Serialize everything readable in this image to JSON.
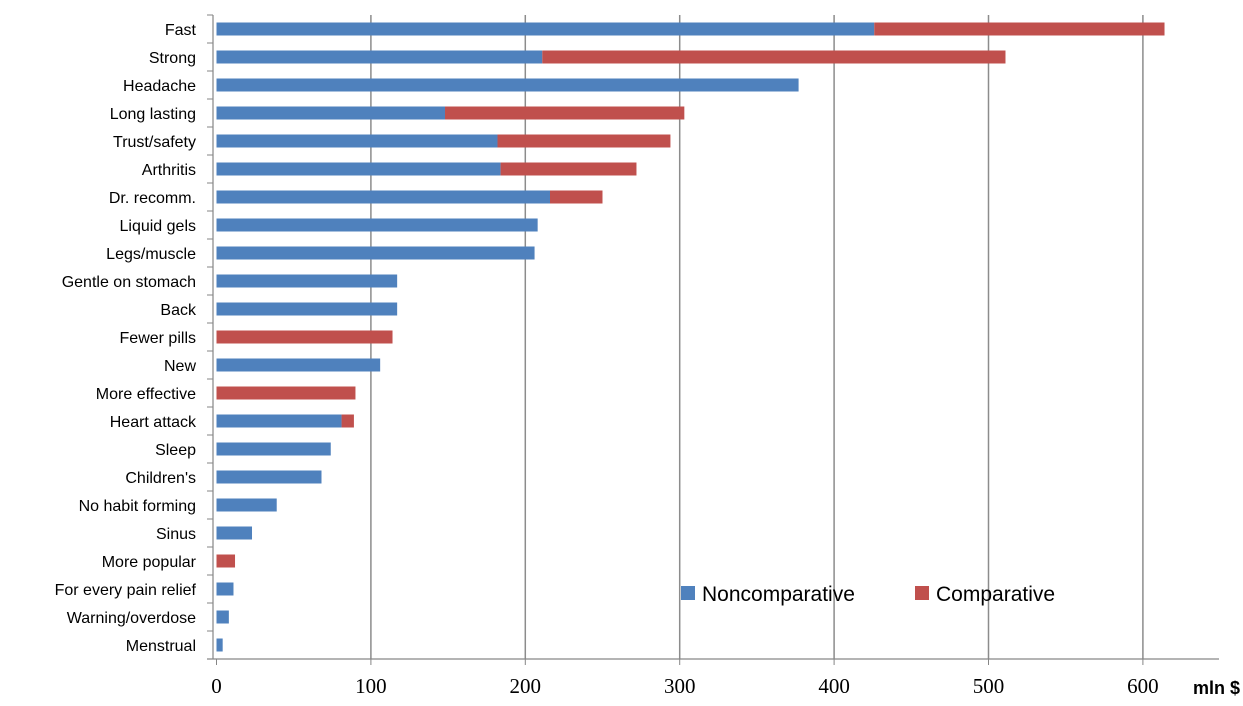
{
  "chart_data": {
    "type": "bar",
    "orientation": "horizontal",
    "stacked": true,
    "categories": [
      "Fast",
      "Strong",
      "Headache",
      "Long lasting",
      "Trust/safety",
      "Arthritis",
      "Dr. recomm.",
      "Liquid gels",
      "Legs/muscle",
      "Gentle on stomach",
      "Back",
      "Fewer pills",
      "New",
      "More effective",
      "Heart attack",
      "Sleep",
      "Children's",
      "No habit forming",
      "Sinus",
      "More popular",
      "For every pain relief",
      "Warning/overdose",
      "Menstrual"
    ],
    "series": [
      {
        "name": "Noncomparative",
        "color": "#4F81BD",
        "values": [
          426,
          211,
          377,
          148,
          182,
          184,
          216,
          208,
          206,
          117,
          117,
          0,
          106,
          0,
          81,
          74,
          68,
          39,
          23,
          0,
          11,
          8,
          4
        ]
      },
      {
        "name": "Comparative",
        "color": "#C0504D",
        "values": [
          188,
          300,
          0,
          155,
          112,
          88,
          34,
          0,
          0,
          0,
          0,
          114,
          0,
          90,
          8,
          0,
          0,
          0,
          0,
          12,
          0,
          0,
          0
        ]
      }
    ],
    "xlim": [
      0,
      650
    ],
    "xticks": [
      "0",
      "100",
      "200",
      "300",
      "400",
      "500",
      "600"
    ],
    "xtick_values": [
      0,
      100,
      200,
      300,
      400,
      500,
      600
    ],
    "xunit": "mln $",
    "grid": true,
    "legend_position": "bottom-right inside plot"
  }
}
